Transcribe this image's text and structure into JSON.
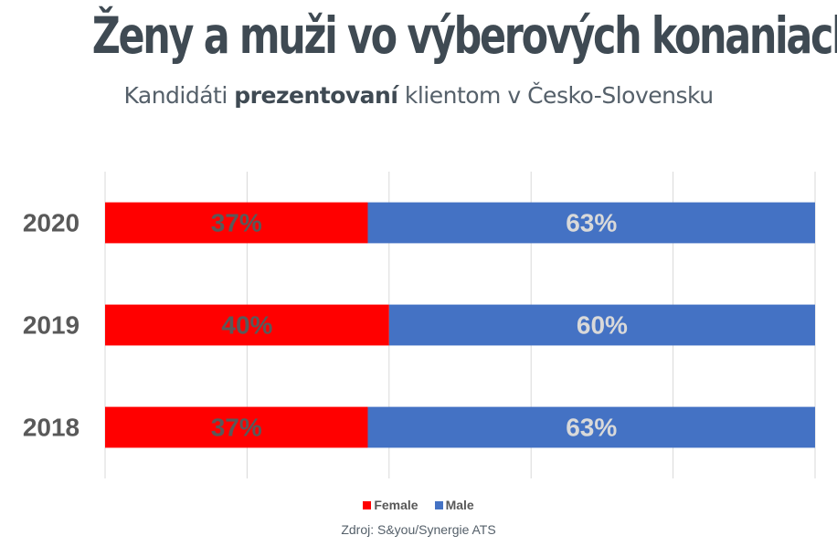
{
  "title": "Ženy a muži vo výberových konaniach",
  "subtitle": {
    "before": "Kandidáti ",
    "bold": "prezentovaní",
    "after": " klientom v Česko-Slovensku"
  },
  "source": "Zdroj: S&you/Synergie ATS",
  "colors": {
    "female": "#ff0000",
    "male": "#4472c4",
    "female_label": "#595959",
    "male_label": "#d9d9d9",
    "grid": "#d9d9d9",
    "category_label": "#595959"
  },
  "chart_data": {
    "type": "bar",
    "orientation": "horizontal",
    "stacked": true,
    "categories": [
      "2020",
      "2019",
      "2018"
    ],
    "series": [
      {
        "name": "Female",
        "values": [
          37,
          40,
          37
        ],
        "labels": [
          "37%",
          "40%",
          "37%"
        ]
      },
      {
        "name": "Male",
        "values": [
          63,
          60,
          63
        ],
        "labels": [
          "63%",
          "60%",
          "63%"
        ]
      }
    ],
    "xlim": [
      0,
      100
    ],
    "grid": true,
    "legend": "bottom"
  }
}
